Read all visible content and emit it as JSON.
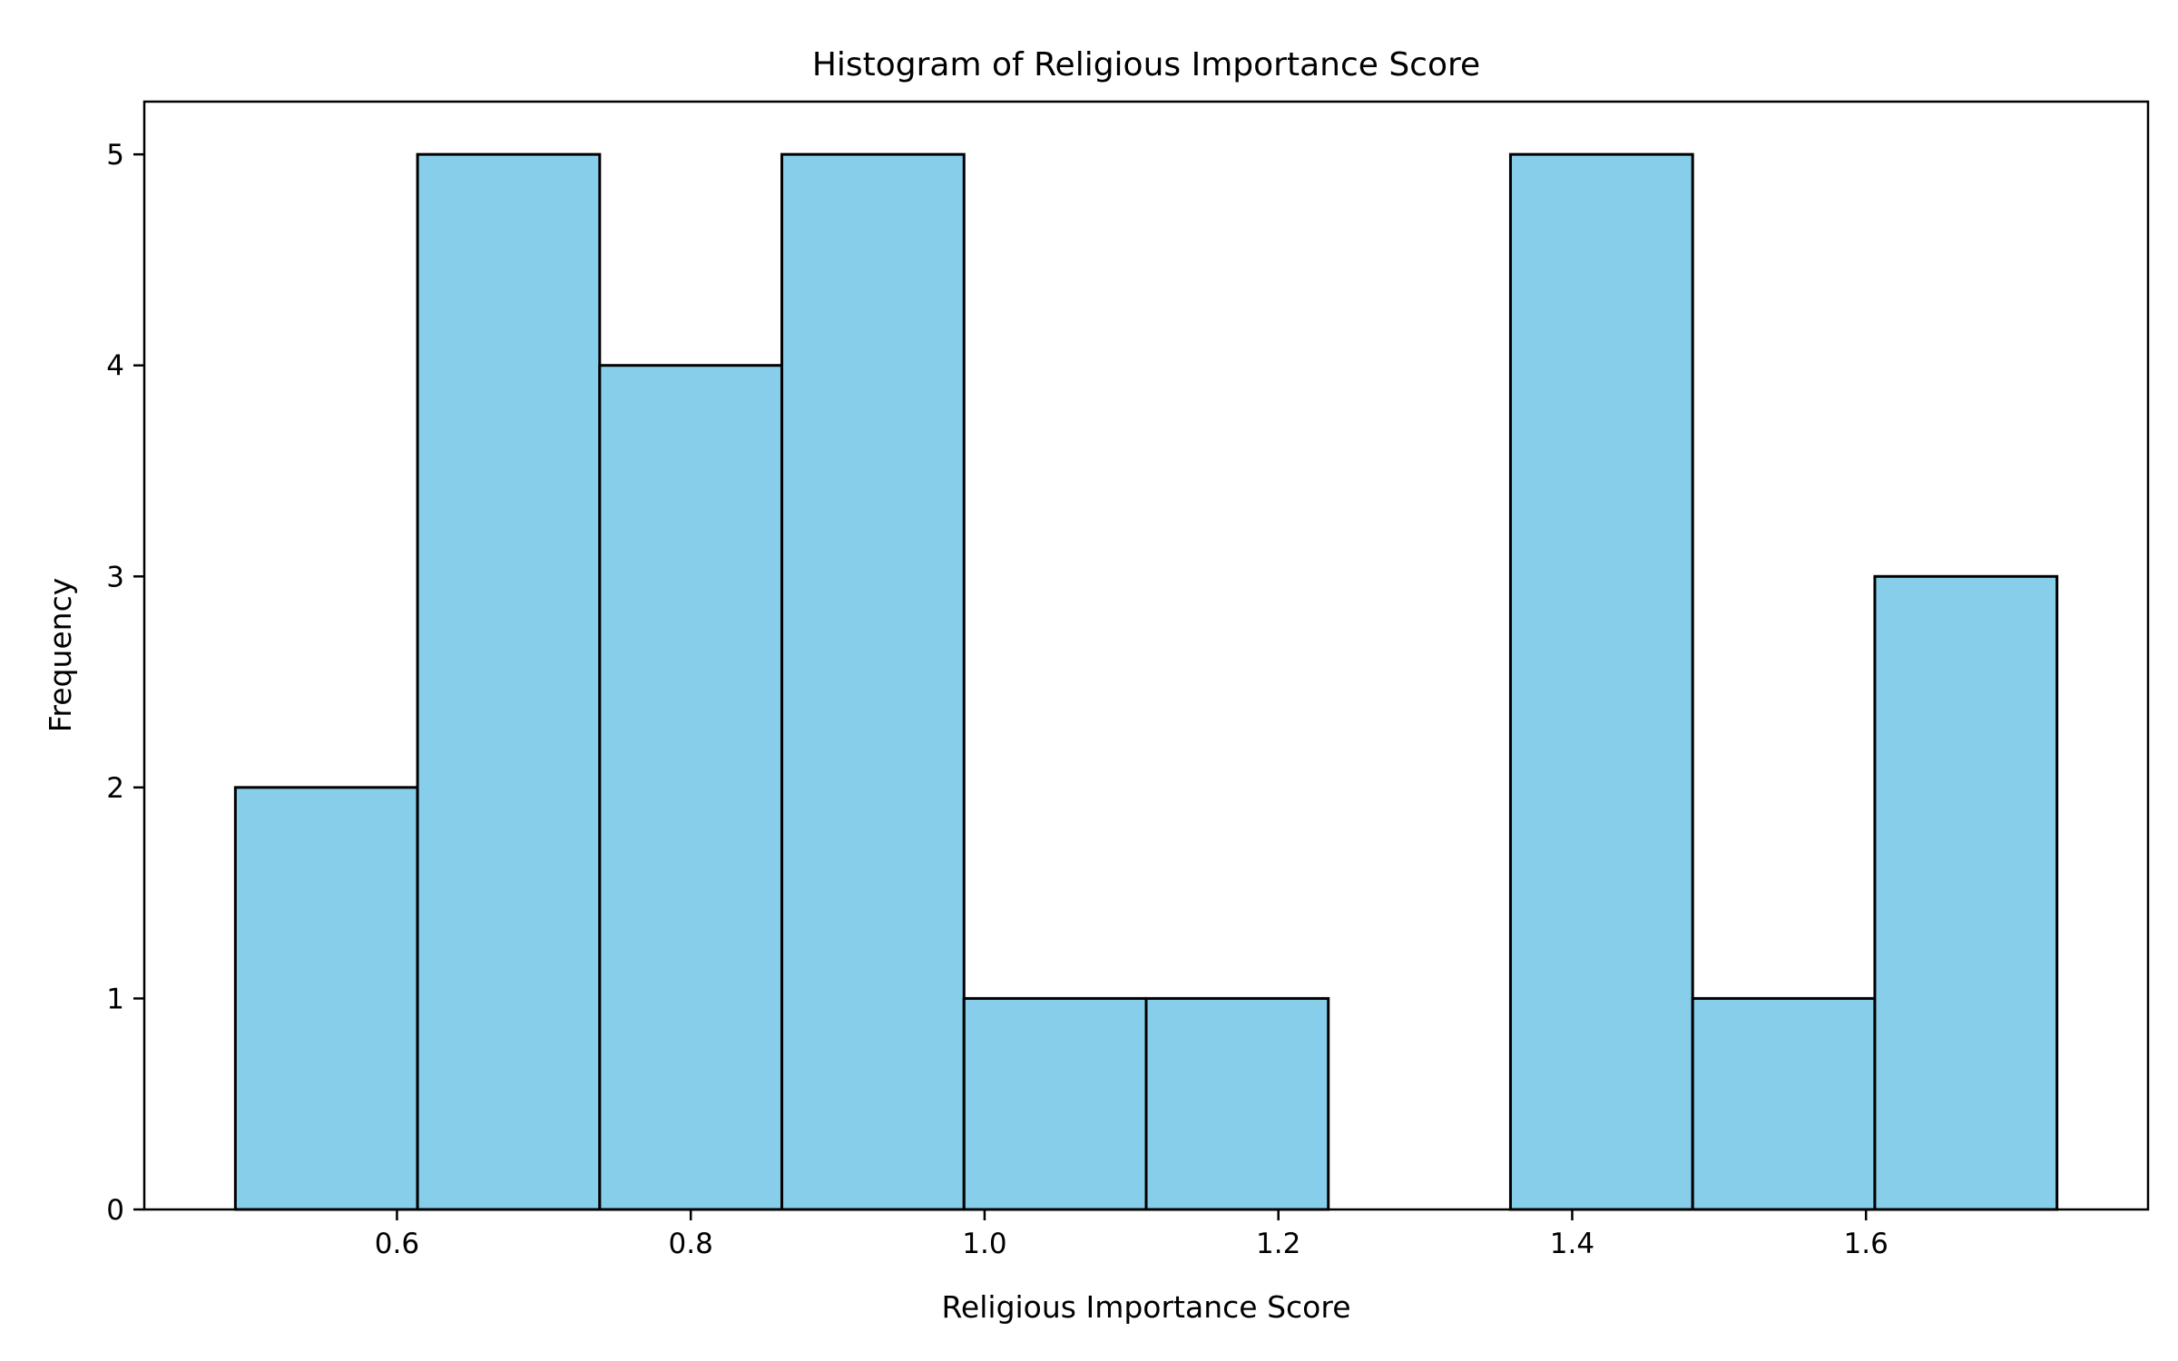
{
  "chart_data": {
    "type": "histogram",
    "title": "Histogram of Religious Importance Score",
    "xlabel": "Religious Importance Score",
    "ylabel": "Frequency",
    "bin_edges": [
      0.49,
      0.614,
      0.738,
      0.862,
      0.986,
      1.11,
      1.234,
      1.358,
      1.482,
      1.606,
      1.73
    ],
    "counts": [
      2,
      5,
      4,
      5,
      1,
      1,
      0,
      5,
      1,
      3
    ],
    "xlim": [
      0.428,
      1.792
    ],
    "ylim": [
      0,
      5.25
    ],
    "x_ticks": [
      0.6,
      0.8,
      1.0,
      1.2,
      1.4,
      1.6
    ],
    "x_tick_labels": [
      "0.6",
      "0.8",
      "1.0",
      "1.2",
      "1.4",
      "1.6"
    ],
    "y_ticks": [
      0,
      1,
      2,
      3,
      4,
      5
    ],
    "y_tick_labels": [
      "0",
      "1",
      "2",
      "3",
      "4",
      "5"
    ],
    "bar_color": "#87CEEB",
    "edge_color": "#000000",
    "grid": false,
    "legend": "none"
  }
}
